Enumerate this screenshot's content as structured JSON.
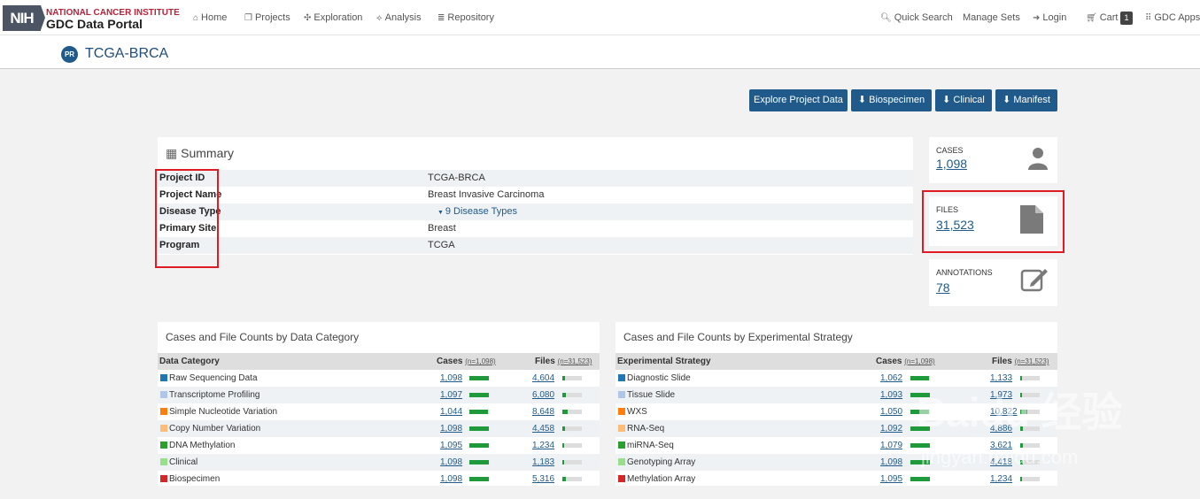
{
  "brand": {
    "nih": "NIH",
    "institute": "NATIONAL CANCER INSTITUTE",
    "portal": "GDC Data Portal"
  },
  "nav": {
    "home": "Home",
    "projects": "Projects",
    "exploration": "Exploration",
    "analysis": "Analysis",
    "repository": "Repository",
    "quick_search": "Quick Search",
    "manage_sets": "Manage Sets",
    "login": "Login",
    "cart": "Cart",
    "cart_count": "1",
    "gdc_apps": "GDC Apps"
  },
  "project": {
    "badge": "PR",
    "title": "TCGA-BRCA"
  },
  "buttons": {
    "explore": "Explore Project Data",
    "biospecimen": "Biospecimen",
    "clinical": "Clinical",
    "manifest": "Manifest"
  },
  "summary": {
    "title": "Summary",
    "rows": [
      {
        "label": "Project ID",
        "value": "TCGA-BRCA"
      },
      {
        "label": "Project Name",
        "value": "Breast Invasive Carcinoma"
      },
      {
        "label": "Disease Type",
        "value": "9 Disease Types"
      },
      {
        "label": "Primary Site",
        "value": "Breast"
      },
      {
        "label": "Program",
        "value": "TCGA"
      }
    ]
  },
  "cards": {
    "cases": {
      "label": "CASES",
      "value": "1,098"
    },
    "files": {
      "label": "FILES",
      "value": "31,523"
    },
    "annotations": {
      "label": "ANNOTATIONS",
      "value": "78"
    }
  },
  "data_category": {
    "title": "Cases and File Counts by Data Category",
    "col1": "Data Category",
    "col2": "Cases",
    "col2_n": "(n=1,098)",
    "col3": "Files",
    "col3_n": "(n=31,523)",
    "rows": [
      {
        "name": "Raw Sequencing Data",
        "color": "#1f77b4",
        "cases": "1,098",
        "cases_frac": 1.0,
        "files": "4,604",
        "files_frac": 0.146
      },
      {
        "name": "Transcriptome Profiling",
        "color": "#aec7e8",
        "cases": "1,097",
        "cases_frac": 0.999,
        "files": "6,080",
        "files_frac": 0.193
      },
      {
        "name": "Simple Nucleotide Variation",
        "color": "#ff7f0e",
        "cases": "1,044",
        "cases_frac": 0.951,
        "files": "8,648",
        "files_frac": 0.274
      },
      {
        "name": "Copy Number Variation",
        "color": "#ffbb78",
        "cases": "1,098",
        "cases_frac": 1.0,
        "files": "4,458",
        "files_frac": 0.141
      },
      {
        "name": "DNA Methylation",
        "color": "#2ca02c",
        "cases": "1,095",
        "cases_frac": 0.997,
        "files": "1,234",
        "files_frac": 0.039
      },
      {
        "name": "Clinical",
        "color": "#98df8a",
        "cases": "1,098",
        "cases_frac": 1.0,
        "files": "1,183",
        "files_frac": 0.038
      },
      {
        "name": "Biospecimen",
        "color": "#d62728",
        "cases": "1,098",
        "cases_frac": 1.0,
        "files": "5,316",
        "files_frac": 0.169
      }
    ]
  },
  "exp_strategy": {
    "title": "Cases and File Counts by Experimental Strategy",
    "col1": "Experimental Strategy",
    "col2": "Cases",
    "col2_n": "(n=1,098)",
    "col3": "Files",
    "col3_n": "(n=31,523)",
    "rows": [
      {
        "name": "Diagnostic Slide",
        "color": "#1f77b4",
        "cases": "1,062",
        "cases_frac": 0.967,
        "files": "1,133",
        "files_frac": 0.036
      },
      {
        "name": "Tissue Slide",
        "color": "#aec7e8",
        "cases": "1,093",
        "cases_frac": 0.995,
        "files": "1,973",
        "files_frac": 0.063
      },
      {
        "name": "WXS",
        "color": "#ff7f0e",
        "cases": "1,050",
        "cases_frac": 0.956,
        "files": "10,822",
        "files_frac": 0.343
      },
      {
        "name": "RNA-Seq",
        "color": "#ffbb78",
        "cases": "1,092",
        "cases_frac": 0.995,
        "files": "4,886",
        "files_frac": 0.155
      },
      {
        "name": "miRNA-Seq",
        "color": "#2ca02c",
        "cases": "1,079",
        "cases_frac": 0.983,
        "files": "3,621",
        "files_frac": 0.115
      },
      {
        "name": "Genotyping Array",
        "color": "#98df8a",
        "cases": "1,098",
        "cases_frac": 1.0,
        "files": "4,418",
        "files_frac": 0.14
      },
      {
        "name": "Methylation Array",
        "color": "#d62728",
        "cases": "1,095",
        "cases_frac": 0.997,
        "files": "1,234",
        "files_frac": 0.039
      }
    ]
  },
  "watermark": {
    "main": "Baidu 经验",
    "sub": "jingyan.baidu.com"
  }
}
